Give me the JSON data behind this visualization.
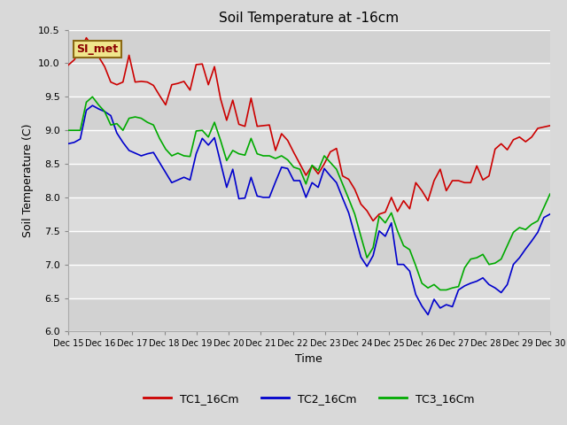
{
  "title": "Soil Temperature at -16cm",
  "xlabel": "Time",
  "ylabel": "Soil Temperature (C)",
  "ylim": [
    6.0,
    10.5
  ],
  "annotation_text": "SI_met",
  "annotation_bg": "#f0e68c",
  "annotation_border": "#8b6914",
  "legend_labels": [
    "TC1_16Cm",
    "TC2_16Cm",
    "TC3_16Cm"
  ],
  "colors": [
    "#cc0000",
    "#0000cc",
    "#00aa00"
  ],
  "fig_bg": "#d9d9d9",
  "plot_bg": "#d9d9d9",
  "x_tick_labels": [
    "Dec 15",
    "Dec 16",
    "Dec 17",
    "Dec 18",
    "Dec 19",
    "Dec 20",
    "Dec 21",
    "Dec 22",
    "Dec 23",
    "Dec 24",
    "Dec 25",
    "Dec 26",
    "Dec 27",
    "Dec 28",
    "Dec 29",
    "Dec 30"
  ],
  "TC1": [
    9.97,
    10.05,
    10.18,
    10.38,
    10.25,
    10.1,
    9.95,
    9.72,
    9.68,
    9.72,
    10.12,
    9.72,
    9.73,
    9.72,
    9.67,
    9.52,
    9.38,
    9.68,
    9.7,
    9.73,
    9.6,
    9.98,
    9.99,
    9.68,
    9.95,
    9.47,
    9.15,
    9.45,
    9.09,
    9.06,
    9.48,
    9.06,
    9.07,
    9.08,
    8.7,
    8.95,
    8.85,
    8.67,
    8.5,
    8.33,
    8.47,
    8.35,
    8.5,
    8.68,
    8.73,
    8.32,
    8.27,
    8.12,
    7.9,
    7.8,
    7.65,
    7.75,
    7.78,
    8.0,
    7.79,
    7.95,
    7.83,
    8.22,
    8.1,
    7.95,
    8.25,
    8.42,
    8.1,
    8.25,
    8.25,
    8.22,
    8.22,
    8.47,
    8.26,
    8.32,
    8.72,
    8.8,
    8.71,
    8.86,
    8.9,
    8.83,
    8.9,
    9.03,
    9.05,
    9.07
  ],
  "TC2": [
    8.8,
    8.82,
    8.87,
    9.3,
    9.37,
    9.32,
    9.28,
    9.22,
    8.96,
    8.82,
    8.7,
    8.66,
    8.62,
    8.65,
    8.67,
    8.52,
    8.37,
    8.22,
    8.26,
    8.3,
    8.26,
    8.65,
    8.88,
    8.78,
    8.89,
    8.52,
    8.15,
    8.42,
    7.98,
    7.99,
    8.3,
    8.02,
    8.0,
    8.0,
    8.23,
    8.45,
    8.43,
    8.25,
    8.25,
    8.0,
    8.22,
    8.15,
    8.43,
    8.32,
    8.22,
    7.99,
    7.77,
    7.44,
    7.11,
    6.97,
    7.13,
    7.5,
    7.42,
    7.62,
    7.0,
    7.0,
    6.9,
    6.55,
    6.38,
    6.25,
    6.48,
    6.35,
    6.4,
    6.37,
    6.62,
    6.68,
    6.72,
    6.75,
    6.8,
    6.7,
    6.65,
    6.58,
    6.7,
    7.0,
    7.1,
    7.23,
    7.35,
    7.48,
    7.7,
    7.75
  ],
  "TC3": [
    9.0,
    9.0,
    9.0,
    9.42,
    9.5,
    9.38,
    9.28,
    9.08,
    9.1,
    9.0,
    9.18,
    9.2,
    9.18,
    9.12,
    9.08,
    8.88,
    8.72,
    8.62,
    8.66,
    8.62,
    8.61,
    8.99,
    9.0,
    8.9,
    9.12,
    8.85,
    8.55,
    8.7,
    8.65,
    8.63,
    8.88,
    8.65,
    8.62,
    8.62,
    8.58,
    8.62,
    8.56,
    8.45,
    8.42,
    8.2,
    8.48,
    8.4,
    8.62,
    8.52,
    8.42,
    8.2,
    7.98,
    7.75,
    7.42,
    7.1,
    7.25,
    7.72,
    7.62,
    7.77,
    7.5,
    7.28,
    7.22,
    6.98,
    6.72,
    6.65,
    6.7,
    6.62,
    6.62,
    6.65,
    6.67,
    6.95,
    7.08,
    7.1,
    7.15,
    7.0,
    7.02,
    7.08,
    7.28,
    7.48,
    7.55,
    7.52,
    7.6,
    7.65,
    7.85,
    8.05
  ]
}
